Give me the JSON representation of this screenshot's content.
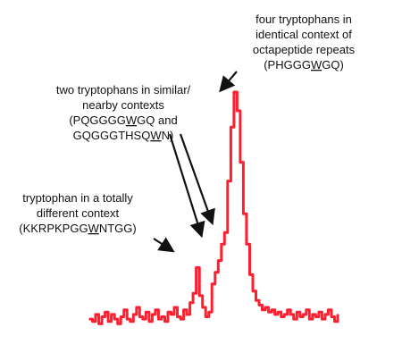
{
  "chart_data": {
    "type": "line",
    "title": "",
    "xlabel": "",
    "ylabel": "",
    "grid": false,
    "legend": "none",
    "series_color": "#ff1f2e",
    "y_relative": [
      0.03,
      0.02,
      0.05,
      0.01,
      0.04,
      0.06,
      0.02,
      0.05,
      0.03,
      0.01,
      0.04,
      0.07,
      0.03,
      0.02,
      0.05,
      0.08,
      0.04,
      0.03,
      0.06,
      0.02,
      0.05,
      0.07,
      0.03,
      0.04,
      0.02,
      0.06,
      0.05,
      0.08,
      0.04,
      0.03,
      0.07,
      0.05,
      0.1,
      0.14,
      0.25,
      0.13,
      0.08,
      0.04,
      0.06,
      0.18,
      0.23,
      0.28,
      0.35,
      0.4,
      0.62,
      0.85,
      1.0,
      0.92,
      0.7,
      0.48,
      0.35,
      0.22,
      0.15,
      0.11,
      0.09,
      0.07,
      0.08,
      0.06,
      0.07,
      0.05,
      0.06,
      0.04,
      0.05,
      0.07,
      0.05,
      0.03,
      0.06,
      0.04,
      0.05,
      0.07,
      0.03,
      0.05,
      0.04,
      0.06,
      0.03,
      0.05,
      0.07,
      0.04,
      0.02,
      0.05
    ],
    "annotations": [
      {
        "lines": [
          "four tryptophans in",
          "identical context of",
          "octapeptide repeats",
          "(PHGGG|W|GQ)"
        ]
      },
      {
        "lines": [
          "two tryptophans in similar/",
          "nearby contexts",
          "(PQGGGG|W|GQ and",
          "GQGGGTHSQ|W|N)"
        ]
      },
      {
        "lines": [
          "tryptophan in a totally",
          "different context",
          "(KKRPKPGG|W|NTGG)"
        ]
      }
    ]
  }
}
